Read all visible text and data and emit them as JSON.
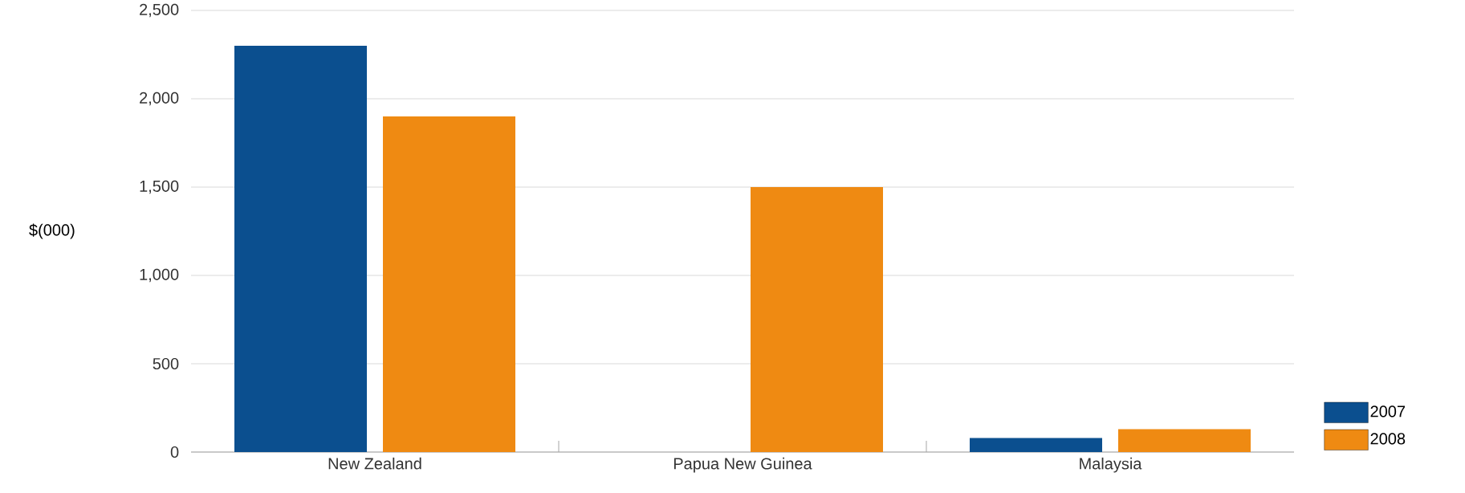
{
  "chart_data": {
    "type": "bar",
    "ylabel": "$(000)",
    "categories": [
      "New Zealand",
      "Papua New Guinea",
      "Malaysia"
    ],
    "series": [
      {
        "name": "2007",
        "color": "#0b4f8f",
        "values": [
          2300,
          0,
          80
        ]
      },
      {
        "name": "2008",
        "color": "#ef8a12",
        "values": [
          1900,
          1500,
          130
        ]
      }
    ],
    "ylim": [
      0,
      2500
    ],
    "yticks": [
      0,
      500,
      {
        "value": 1000,
        "label": "1,000"
      },
      {
        "value": 1500,
        "label": "1,500"
      },
      {
        "value": 2000,
        "label": "2,000"
      },
      {
        "value": 2500,
        "label": "2,500"
      }
    ],
    "grid": "y",
    "legend": "right"
  }
}
